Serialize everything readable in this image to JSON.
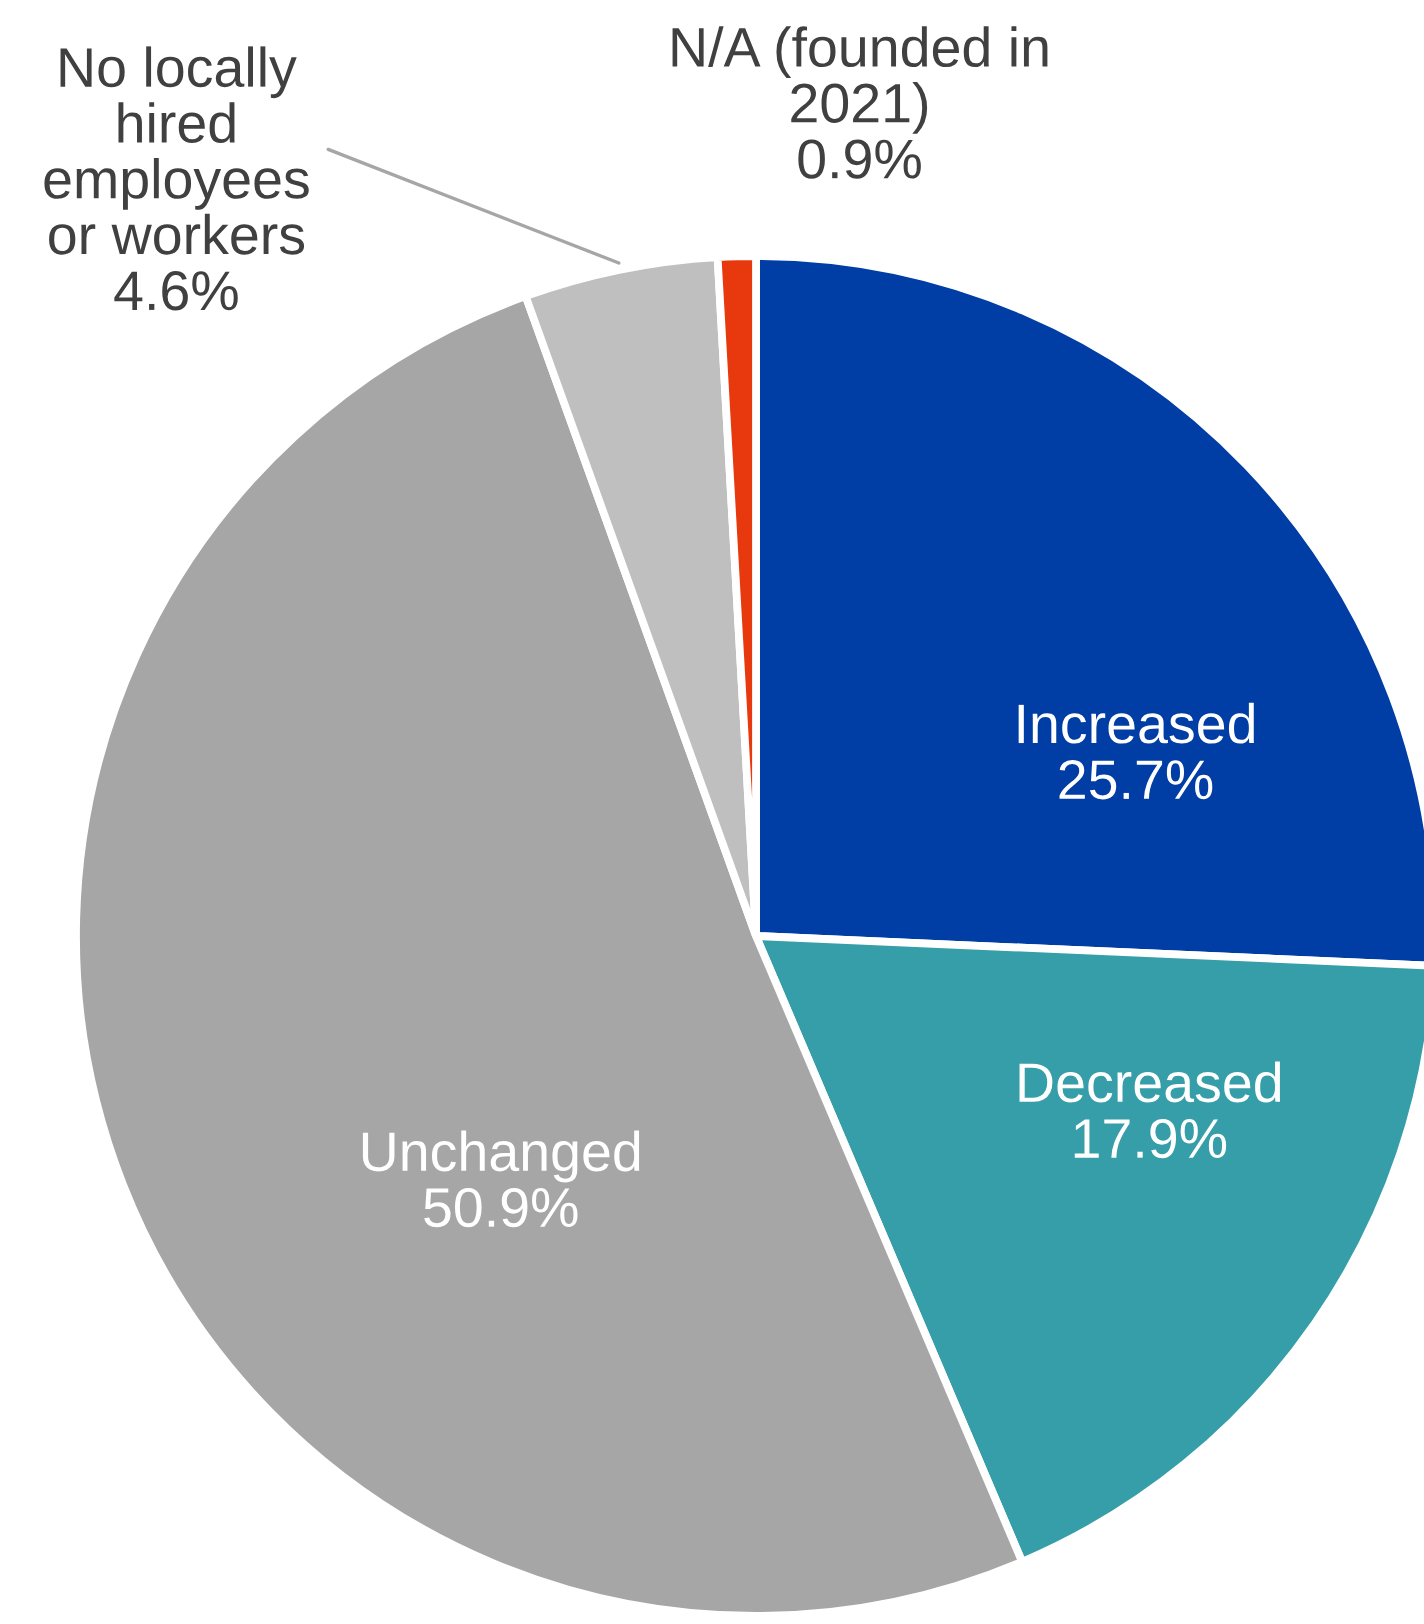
{
  "chart_data": {
    "type": "pie",
    "categories": [
      "Increased",
      "Decreased",
      "Unchanged",
      "No locally\nhired\nemployees\nor workers",
      "N/A (founded in\n2021)"
    ],
    "values": [
      25.7,
      17.9,
      50.9,
      4.6,
      0.9
    ],
    "colors": [
      "#003da5",
      "#369ea8",
      "#a6a6a6",
      "#bfbfbf",
      "#e8380d"
    ],
    "value_labels": [
      "25.7%",
      "17.9%",
      "50.9%",
      "4.6%",
      "0.9%"
    ]
  }
}
